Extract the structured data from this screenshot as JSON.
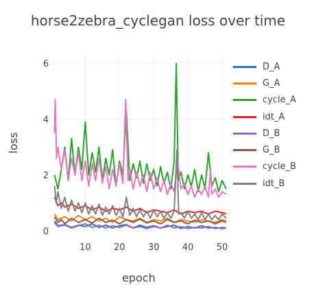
{
  "chart_data": {
    "type": "line",
    "title": "horse2zebra_cyclegan loss over time",
    "xlabel": "epoch",
    "ylabel": "loss",
    "xlim": [
      0.5,
      51.2
    ],
    "ylim": [
      -0.1,
      6.3
    ],
    "xticks": [
      10,
      20,
      30,
      40,
      50
    ],
    "yticks": [
      0,
      2,
      4,
      6
    ],
    "grid": true,
    "legend_position": "right",
    "series": [
      {
        "name": "D_A",
        "color": "#1f77b4",
        "points": [
          [
            1,
            0.35
          ],
          [
            2,
            0.18
          ],
          [
            4,
            0.22
          ],
          [
            6,
            0.12
          ],
          [
            8,
            0.2
          ],
          [
            10,
            0.15
          ],
          [
            12,
            0.25
          ],
          [
            14,
            0.12
          ],
          [
            16,
            0.2
          ],
          [
            18,
            0.1
          ],
          [
            20,
            0.18
          ],
          [
            22,
            0.22
          ],
          [
            24,
            0.1
          ],
          [
            26,
            0.2
          ],
          [
            28,
            0.12
          ],
          [
            30,
            0.18
          ],
          [
            32,
            0.1
          ],
          [
            34,
            0.15
          ],
          [
            36,
            0.2
          ],
          [
            38,
            0.08
          ],
          [
            40,
            0.15
          ],
          [
            42,
            0.1
          ],
          [
            44,
            0.18
          ],
          [
            46,
            0.1
          ],
          [
            48,
            0.12
          ],
          [
            50,
            0.08
          ],
          [
            51.2,
            0.1
          ]
        ]
      },
      {
        "name": "G_A",
        "color": "#ff7f0e",
        "points": [
          [
            1,
            0.6
          ],
          [
            2,
            0.4
          ],
          [
            4,
            0.5
          ],
          [
            6,
            0.35
          ],
          [
            8,
            0.55
          ],
          [
            10,
            0.4
          ],
          [
            12,
            0.5
          ],
          [
            14,
            0.35
          ],
          [
            16,
            0.45
          ],
          [
            18,
            0.3
          ],
          [
            20,
            0.5
          ],
          [
            22,
            0.4
          ],
          [
            24,
            0.35
          ],
          [
            26,
            0.45
          ],
          [
            28,
            0.3
          ],
          [
            30,
            0.4
          ],
          [
            32,
            0.35
          ],
          [
            34,
            0.45
          ],
          [
            36,
            0.3
          ],
          [
            38,
            0.4
          ],
          [
            40,
            0.35
          ],
          [
            42,
            0.3
          ],
          [
            44,
            0.4
          ],
          [
            46,
            0.35
          ],
          [
            48,
            0.3
          ],
          [
            50,
            0.4
          ],
          [
            51.2,
            0.35
          ]
        ]
      },
      {
        "name": "cycle_A",
        "color": "#2ca02c",
        "points": [
          [
            1,
            2.0
          ],
          [
            2,
            1.5
          ],
          [
            3,
            2.2
          ],
          [
            4,
            3.0
          ],
          [
            5,
            1.8
          ],
          [
            6,
            3.3
          ],
          [
            7,
            2.0
          ],
          [
            8,
            3.0
          ],
          [
            9,
            2.2
          ],
          [
            10,
            3.9
          ],
          [
            11,
            2.0
          ],
          [
            12,
            2.8
          ],
          [
            13,
            2.1
          ],
          [
            14,
            3.0
          ],
          [
            15,
            1.8
          ],
          [
            16,
            2.6
          ],
          [
            17,
            2.0
          ],
          [
            18,
            2.9
          ],
          [
            19,
            1.6
          ],
          [
            20,
            2.5
          ],
          [
            21,
            2.0
          ],
          [
            22,
            4.3
          ],
          [
            23,
            1.8
          ],
          [
            24,
            2.4
          ],
          [
            25,
            1.9
          ],
          [
            26,
            2.5
          ],
          [
            27,
            1.7
          ],
          [
            28,
            2.4
          ],
          [
            29,
            1.8
          ],
          [
            30,
            2.2
          ],
          [
            31,
            1.6
          ],
          [
            32,
            2.3
          ],
          [
            33,
            1.7
          ],
          [
            34,
            2.1
          ],
          [
            35,
            1.5
          ],
          [
            36,
            2.5
          ],
          [
            36.6,
            6.0
          ],
          [
            37.2,
            1.8
          ],
          [
            38,
            2.1
          ],
          [
            39,
            1.5
          ],
          [
            40,
            2.0
          ],
          [
            41,
            1.6
          ],
          [
            42,
            2.2
          ],
          [
            43,
            1.4
          ],
          [
            44,
            2.0
          ],
          [
            45,
            1.5
          ],
          [
            46,
            2.8
          ],
          [
            47,
            1.6
          ],
          [
            48,
            1.9
          ],
          [
            49,
            1.4
          ],
          [
            50,
            1.8
          ],
          [
            51.2,
            1.5
          ]
        ]
      },
      {
        "name": "idt_A",
        "color": "#d62728",
        "points": [
          [
            1,
            1.2
          ],
          [
            2,
            0.9
          ],
          [
            3,
            1.0
          ],
          [
            4,
            0.85
          ],
          [
            6,
            0.95
          ],
          [
            8,
            0.8
          ],
          [
            10,
            0.9
          ],
          [
            12,
            0.75
          ],
          [
            14,
            0.85
          ],
          [
            16,
            0.7
          ],
          [
            18,
            0.8
          ],
          [
            20,
            0.75
          ],
          [
            22,
            0.85
          ],
          [
            24,
            0.7
          ],
          [
            26,
            0.8
          ],
          [
            28,
            0.65
          ],
          [
            30,
            0.75
          ],
          [
            32,
            0.7
          ],
          [
            34,
            0.65
          ],
          [
            36,
            0.75
          ],
          [
            38,
            0.6
          ],
          [
            40,
            0.7
          ],
          [
            42,
            0.65
          ],
          [
            44,
            0.7
          ],
          [
            46,
            0.6
          ],
          [
            48,
            0.7
          ],
          [
            50,
            0.65
          ],
          [
            51.2,
            0.6
          ]
        ]
      },
      {
        "name": "D_B",
        "color": "#9467bd",
        "points": [
          [
            1,
            0.3
          ],
          [
            2,
            0.15
          ],
          [
            4,
            0.2
          ],
          [
            6,
            0.1
          ],
          [
            8,
            0.18
          ],
          [
            10,
            0.25
          ],
          [
            12,
            0.12
          ],
          [
            14,
            0.2
          ],
          [
            16,
            0.1
          ],
          [
            18,
            0.18
          ],
          [
            20,
            0.12
          ],
          [
            22,
            0.2
          ],
          [
            24,
            0.1
          ],
          [
            26,
            0.15
          ],
          [
            28,
            0.08
          ],
          [
            30,
            0.15
          ],
          [
            32,
            0.1
          ],
          [
            34,
            0.2
          ],
          [
            36,
            0.1
          ],
          [
            38,
            0.15
          ],
          [
            40,
            0.08
          ],
          [
            42,
            0.12
          ],
          [
            44,
            0.1
          ],
          [
            46,
            0.15
          ],
          [
            48,
            0.08
          ],
          [
            50,
            0.12
          ],
          [
            51.2,
            0.1
          ]
        ]
      },
      {
        "name": "G_B",
        "color": "#8c564b",
        "points": [
          [
            1,
            0.5
          ],
          [
            2,
            0.3
          ],
          [
            3,
            0.4
          ],
          [
            4,
            0.25
          ],
          [
            6,
            0.45
          ],
          [
            8,
            0.3
          ],
          [
            10,
            0.4
          ],
          [
            12,
            0.28
          ],
          [
            14,
            0.45
          ],
          [
            16,
            0.3
          ],
          [
            18,
            0.38
          ],
          [
            20,
            0.25
          ],
          [
            22,
            0.4
          ],
          [
            24,
            0.3
          ],
          [
            26,
            0.42
          ],
          [
            28,
            0.28
          ],
          [
            30,
            0.35
          ],
          [
            32,
            0.25
          ],
          [
            34,
            0.4
          ],
          [
            36,
            0.3
          ],
          [
            38,
            0.35
          ],
          [
            40,
            0.25
          ],
          [
            42,
            0.38
          ],
          [
            44,
            0.3
          ],
          [
            46,
            0.35
          ],
          [
            48,
            0.25
          ],
          [
            50,
            0.35
          ],
          [
            51.2,
            0.3
          ]
        ]
      },
      {
        "name": "cycle_B",
        "color": "#e377c2",
        "points": [
          [
            1,
            3.5
          ],
          [
            1.2,
            4.7
          ],
          [
            1.6,
            2.6
          ],
          [
            2,
            3.0
          ],
          [
            3,
            2.2
          ],
          [
            4,
            2.9
          ],
          [
            5,
            1.8
          ],
          [
            6,
            2.6
          ],
          [
            7,
            2.0
          ],
          [
            8,
            2.8
          ],
          [
            9,
            1.8
          ],
          [
            10,
            2.5
          ],
          [
            11,
            1.6
          ],
          [
            12,
            2.4
          ],
          [
            13,
            1.8
          ],
          [
            14,
            2.6
          ],
          [
            15,
            1.7
          ],
          [
            16,
            2.3
          ],
          [
            17,
            1.5
          ],
          [
            18,
            2.2
          ],
          [
            19,
            1.6
          ],
          [
            20,
            2.4
          ],
          [
            21,
            1.7
          ],
          [
            21.8,
            4.7
          ],
          [
            22.5,
            1.8
          ],
          [
            23,
            2.2
          ],
          [
            24,
            1.5
          ],
          [
            25,
            2.1
          ],
          [
            26,
            1.6
          ],
          [
            27,
            2.0
          ],
          [
            28,
            1.4
          ],
          [
            29,
            2.1
          ],
          [
            30,
            1.5
          ],
          [
            31,
            1.9
          ],
          [
            32,
            1.4
          ],
          [
            33,
            1.8
          ],
          [
            34,
            1.3
          ],
          [
            35,
            1.7
          ],
          [
            36,
            1.4
          ],
          [
            37,
            2.5
          ],
          [
            38,
            1.5
          ],
          [
            39,
            1.7
          ],
          [
            40,
            1.3
          ],
          [
            41,
            1.6
          ],
          [
            42,
            1.2
          ],
          [
            43,
            1.5
          ],
          [
            44,
            1.3
          ],
          [
            45,
            1.6
          ],
          [
            46,
            1.2
          ],
          [
            46.6,
            2.2
          ],
          [
            47,
            1.3
          ],
          [
            48,
            1.5
          ],
          [
            49,
            1.2
          ],
          [
            50,
            1.4
          ],
          [
            51.2,
            1.3
          ]
        ]
      },
      {
        "name": "idt_B",
        "color": "#7f7f7f",
        "points": [
          [
            1,
            1.6
          ],
          [
            1.5,
            1.0
          ],
          [
            2,
            1.4
          ],
          [
            3,
            0.8
          ],
          [
            4,
            1.2
          ],
          [
            5,
            0.7
          ],
          [
            6,
            1.1
          ],
          [
            7,
            0.7
          ],
          [
            8,
            1.0
          ],
          [
            9,
            0.65
          ],
          [
            10,
            1.0
          ],
          [
            11,
            0.6
          ],
          [
            12,
            0.9
          ],
          [
            13,
            0.6
          ],
          [
            14,
            0.95
          ],
          [
            15,
            0.55
          ],
          [
            16,
            0.85
          ],
          [
            17,
            0.6
          ],
          [
            18,
            0.9
          ],
          [
            19,
            0.55
          ],
          [
            20,
            0.8
          ],
          [
            21,
            0.5
          ],
          [
            22,
            1.2
          ],
          [
            23,
            0.55
          ],
          [
            24,
            0.8
          ],
          [
            25,
            0.5
          ],
          [
            26,
            0.75
          ],
          [
            27,
            0.5
          ],
          [
            28,
            0.7
          ],
          [
            29,
            0.45
          ],
          [
            30,
            0.75
          ],
          [
            31,
            0.5
          ],
          [
            32,
            0.7
          ],
          [
            33,
            0.45
          ],
          [
            34,
            0.65
          ],
          [
            35,
            0.45
          ],
          [
            36,
            0.7
          ],
          [
            36.8,
            2.9
          ],
          [
            37.3,
            0.6
          ],
          [
            38,
            0.65
          ],
          [
            39,
            0.45
          ],
          [
            40,
            0.7
          ],
          [
            41,
            0.45
          ],
          [
            42,
            0.6
          ],
          [
            43,
            0.4
          ],
          [
            44,
            0.65
          ],
          [
            45,
            0.4
          ],
          [
            46,
            0.6
          ],
          [
            47,
            0.4
          ],
          [
            48,
            0.55
          ],
          [
            49,
            0.4
          ],
          [
            50,
            0.6
          ],
          [
            51.2,
            0.45
          ]
        ]
      }
    ]
  }
}
